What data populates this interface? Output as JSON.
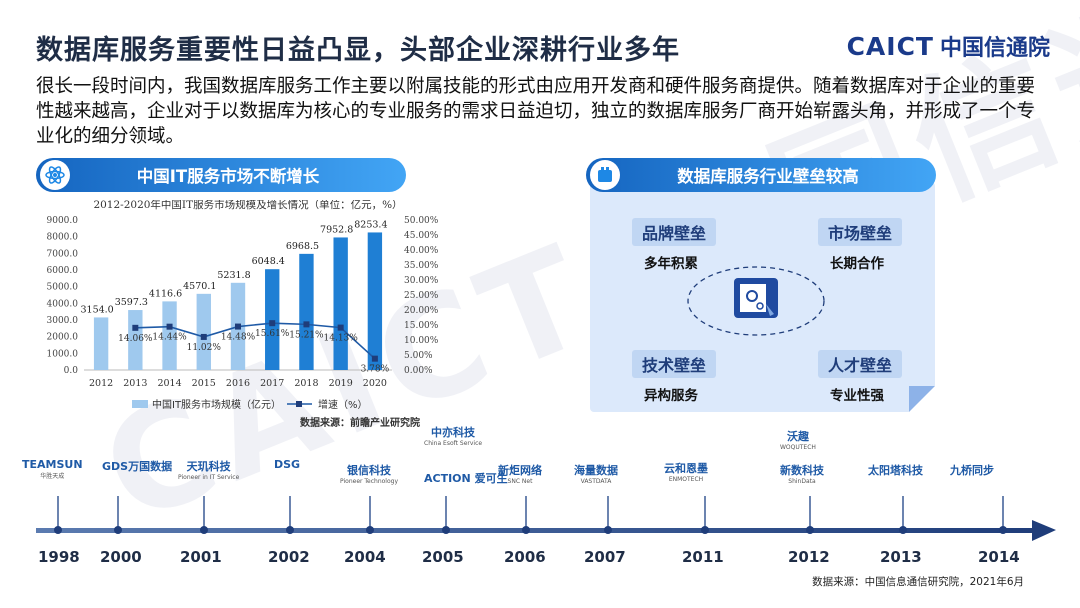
{
  "title": "数据库服务重要性日益凸显，头部企业深耕行业多年",
  "logo": {
    "caict": "CAICT",
    "org": "中国信通院"
  },
  "watermark": "CAICT 中国信通院",
  "intro": "很长一段时间内，我国数据库服务工作主要以附属技能的形式由应用开发商和硬件服务商提供。随着数据库对于企业的重要性越来越高，企业对于以数据库为核心的专业服务的需求日益迫切，独立的数据库服务厂商开始崭露头角，并形成了一个专业化的细分领域。",
  "left_panel": {
    "header": "中国IT服务市场不断增长",
    "source": "数据来源：前瞻产业研究院"
  },
  "right_panel": {
    "header": "数据库服务行业壁垒较高",
    "items": [
      {
        "label": "品牌壁垒",
        "sub": "多年积累"
      },
      {
        "label": "市场壁垒",
        "sub": "长期合作"
      },
      {
        "label": "技术壁垒",
        "sub": "异构服务"
      },
      {
        "label": "人才壁垒",
        "sub": "专业性强"
      }
    ]
  },
  "chart_data": {
    "type": "bar",
    "title": "2012-2020年中国IT服务市场规模及增长情况（单位：亿元，%）",
    "categories": [
      "2012",
      "2013",
      "2014",
      "2015",
      "2016",
      "2017",
      "2018",
      "2019",
      "2020"
    ],
    "series": [
      {
        "name": "中国IT服务市场规模（亿元）",
        "type": "bar",
        "axis": "left",
        "values": [
          3154.0,
          3597.3,
          4116.6,
          4570.1,
          5231.8,
          6048.4,
          6968.5,
          7952.8,
          8253.4
        ],
        "labels": [
          "3154.0",
          "3597.3",
          "4116.6",
          "4570.1",
          "5231.8",
          "6048.4",
          "6968.5",
          "7952.8",
          "8253.4"
        ]
      },
      {
        "name": "增速（%）",
        "type": "line",
        "axis": "right",
        "values": [
          null,
          14.06,
          14.44,
          11.02,
          14.48,
          15.61,
          15.21,
          14.13,
          3.78
        ],
        "labels": [
          "",
          "14.06%",
          "14.44%",
          "11.02%",
          "14.48%",
          "15.61%",
          "15.21%",
          "14.13%",
          "3.78%"
        ]
      }
    ],
    "y_left": {
      "min": 0,
      "max": 9000,
      "step": 1000,
      "ticks": [
        "0.0",
        "1000.0",
        "2000.0",
        "3000.0",
        "4000.0",
        "5000.0",
        "6000.0",
        "7000.0",
        "8000.0",
        "9000.0"
      ]
    },
    "y_right": {
      "min": 0,
      "max": 50,
      "step": 5,
      "ticks": [
        "0.00%",
        "5.00%",
        "10.00%",
        "15.00%",
        "20.00%",
        "25.00%",
        "30.00%",
        "35.00%",
        "40.00%",
        "45.00%",
        "50.00%"
      ]
    },
    "legend_position": "bottom",
    "colors": {
      "bar_old": "#9fc9ee",
      "bar_new": "#1f7fd4",
      "line": "#1f5aa6"
    }
  },
  "timeline": {
    "years": [
      "1998",
      "2000",
      "2001",
      "2002",
      "2004",
      "2005",
      "2006",
      "2007",
      "2011",
      "2012",
      "2013",
      "2014"
    ],
    "companies": [
      {
        "name": "TEAMSUN",
        "sub": "华胜天成"
      },
      {
        "name": "GDS万国数据",
        "sub": ""
      },
      {
        "name": "天玑科技",
        "sub": "Pioneer in IT Service"
      },
      {
        "name": "DSG",
        "sub": ""
      },
      {
        "name": "银信科技",
        "sub": "Pioneer Technology"
      },
      {
        "name": "中亦科技",
        "sub": "China Esoft Service"
      },
      {
        "name": "ACTION 爱可生",
        "sub": ""
      },
      {
        "name": "新炬网络",
        "sub": "SNC Net"
      },
      {
        "name": "海量数据",
        "sub": "VASTDATA"
      },
      {
        "name": "云和恩墨",
        "sub": "ENMOTECH"
      },
      {
        "name": "沃趣",
        "sub": "WOQUTECH"
      },
      {
        "name": "新数科技",
        "sub": "ShinData"
      },
      {
        "name": "太阳塔科技",
        "sub": ""
      },
      {
        "name": "九桥同步",
        "sub": ""
      }
    ],
    "source": "数据来源：中国信息通信研究院，2021年6月"
  }
}
